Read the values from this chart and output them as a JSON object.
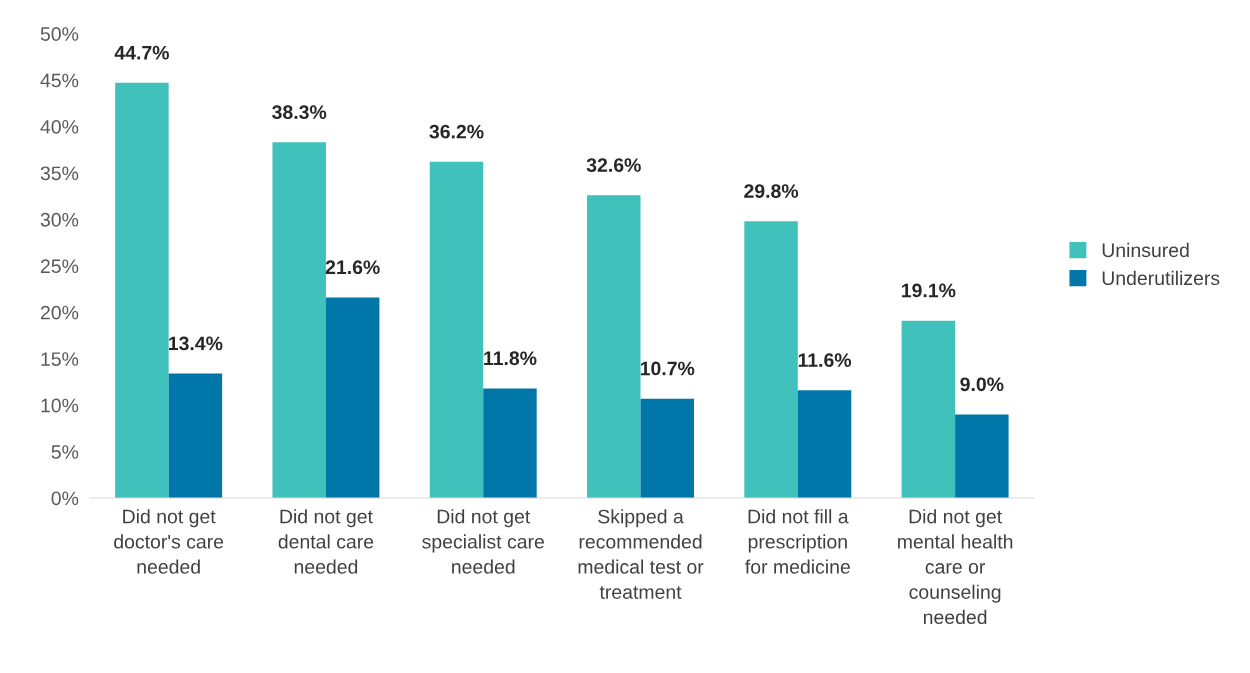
{
  "chart_data": {
    "type": "bar",
    "categories": [
      "Did not get doctor's care needed",
      "Did not get dental care needed",
      "Did not get specialist care needed",
      "Skipped a recommended medical test or treatment",
      "Did not fill a prescription for medicine",
      "Did not get mental health care or counseling needed"
    ],
    "series": [
      {
        "name": "Uninsured",
        "color": "#40c1bc",
        "values": [
          44.7,
          38.3,
          36.2,
          32.6,
          29.8,
          19.1
        ],
        "value_labels": [
          "44.7%",
          "38.3%",
          "36.2%",
          "32.6%",
          "29.8%",
          "19.1%"
        ]
      },
      {
        "name": "Underutilizers",
        "color": "#0077a8",
        "values": [
          13.4,
          21.6,
          11.8,
          10.7,
          11.6,
          9.0
        ],
        "value_labels": [
          "13.4%",
          "21.6%",
          "11.8%",
          "10.7%",
          "11.6%",
          "9.0%"
        ]
      }
    ],
    "ylim": [
      0,
      50
    ],
    "yticks": [
      {
        "value": 0,
        "label": "0%"
      },
      {
        "value": 5,
        "label": "5%"
      },
      {
        "value": 10,
        "label": "10%"
      },
      {
        "value": 15,
        "label": "15%"
      },
      {
        "value": 20,
        "label": "20%"
      },
      {
        "value": 25,
        "label": "25%"
      },
      {
        "value": 30,
        "label": "30%"
      },
      {
        "value": 35,
        "label": "35%"
      },
      {
        "value": 40,
        "label": "40%"
      },
      {
        "value": 45,
        "label": "45%"
      },
      {
        "value": 50,
        "label": "50%"
      }
    ],
    "grid": false,
    "legend": "right"
  }
}
